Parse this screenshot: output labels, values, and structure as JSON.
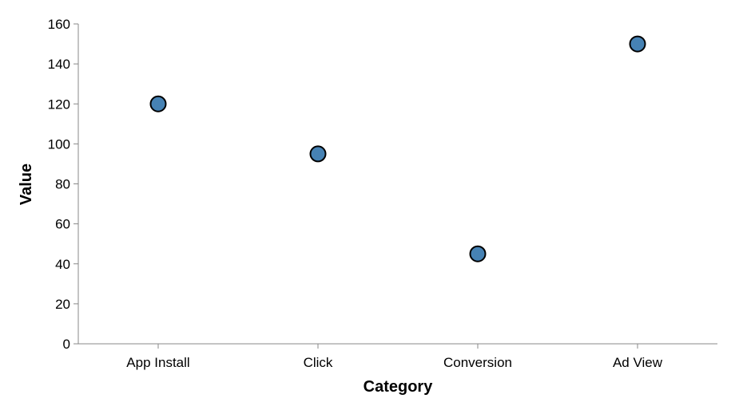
{
  "chart_data": {
    "type": "scatter",
    "categories": [
      "App Install",
      "Click",
      "Conversion",
      "Ad View"
    ],
    "values": [
      120,
      95,
      45,
      150
    ],
    "xlabel": "Category",
    "ylabel": "Value",
    "ylim": [
      0,
      160
    ],
    "yticks": [
      0,
      20,
      40,
      60,
      80,
      100,
      120,
      140,
      160
    ],
    "grid": false,
    "point_color": "#4682b4"
  }
}
